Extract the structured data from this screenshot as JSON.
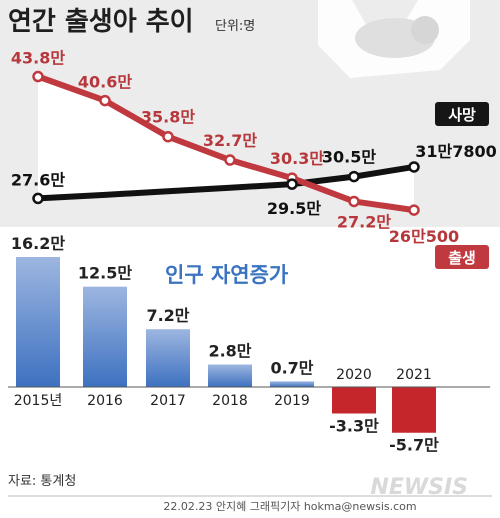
{
  "title": "연간 출생아 추이",
  "unit": "단위:명",
  "source": "자료: 통계청",
  "credit": "22.02.23 안지혜 그래픽기자  hokma@newsis.com",
  "logo": "NEWSIS",
  "colors": {
    "births": "#c0393e",
    "deaths": "#111111",
    "bar_pos": "#4d7fc6",
    "bar_neg": "#c4262c",
    "area": "#ffffff"
  },
  "chart_data": [
    {
      "type": "line",
      "x": [
        "2015",
        "2016",
        "2017",
        "2018",
        "2019",
        "2020",
        "2021"
      ],
      "series": [
        {
          "name": "출생",
          "values": [
            438000,
            406000,
            358000,
            327000,
            303000,
            272000,
            260500
          ],
          "labels": [
            "43.8만",
            "40.6만",
            "35.8만",
            "32.7만",
            "30.3만",
            "27.2만",
            "26만500"
          ]
        },
        {
          "name": "사망",
          "values": [
            276000,
            null,
            null,
            null,
            295000,
            305000,
            317800
          ],
          "labels": [
            "27.6만",
            "",
            "",
            "",
            "29.5만",
            "30.5만",
            "31만7800"
          ]
        }
      ]
    },
    {
      "type": "bar",
      "title": "인구 자연증가",
      "categories": [
        "2015년",
        "2016",
        "2017",
        "2018",
        "2019",
        "2020",
        "2021"
      ],
      "values": [
        162000,
        125000,
        72000,
        28000,
        7000,
        -33000,
        -57000
      ],
      "labels": [
        "16.2만",
        "12.5만",
        "7.2만",
        "2.8만",
        "0.7만",
        "-3.3만",
        "-5.7만"
      ]
    }
  ]
}
